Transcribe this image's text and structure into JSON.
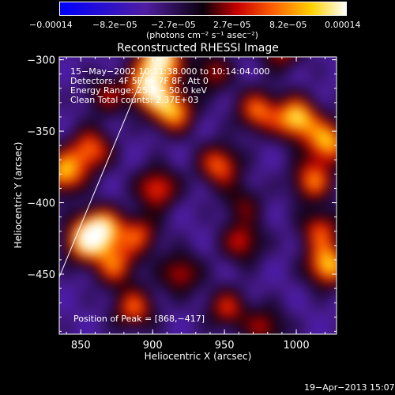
{
  "colorbar": {
    "tick_labels": [
      "−0.00014",
      "−8.2e−05",
      "−2.7e−05",
      "2.7e−05",
      "8.2e−05",
      "0.00014"
    ],
    "unit_label": "(photons cm⁻² s⁻¹ asec⁻²)"
  },
  "chart_data": {
    "type": "heatmap",
    "title": "Reconstructed RHESSI Image",
    "xlabel": "Heliocentric X (arcsec)",
    "ylabel": "Heliocentric Y (arcsec)",
    "xlim": [
      835,
      1028
    ],
    "ylim": [
      -492,
      -298
    ],
    "xticks": [
      850,
      900,
      950,
      1000
    ],
    "yticks": [
      -300,
      -350,
      -400,
      -450
    ],
    "annotations": [
      "15−May−2002 10:11:38.000 to 10:14:04.000",
      "Detectors: 4F 5F 6F 7F 8F, Att 0",
      "Energy Range: 25.0 − 50.0 keV",
      "Clean    Total counts: 2.37E+03"
    ],
    "peak_label": "Position of Peak = [868,−417]",
    "limb_line": [
      [
        835,
        -452
      ],
      [
        895,
        -307
      ]
    ],
    "peaks": [
      {
        "x": 907,
        "y": -305,
        "v": 1.0
      },
      {
        "x": 900,
        "y": -325,
        "v": 0.95
      },
      {
        "x": 915,
        "y": -340,
        "v": 0.75
      },
      {
        "x": 868,
        "y": -417,
        "v": 0.95
      },
      {
        "x": 858,
        "y": -425,
        "v": 0.7
      },
      {
        "x": 845,
        "y": -380,
        "v": 0.75
      },
      {
        "x": 862,
        "y": -365,
        "v": 0.6
      },
      {
        "x": 905,
        "y": -390,
        "v": 0.55
      },
      {
        "x": 893,
        "y": -420,
        "v": 0.5
      },
      {
        "x": 878,
        "y": -440,
        "v": 0.55
      },
      {
        "x": 890,
        "y": -468,
        "v": 0.55
      },
      {
        "x": 920,
        "y": -445,
        "v": 0.45
      },
      {
        "x": 970,
        "y": -340,
        "v": 0.6
      },
      {
        "x": 945,
        "y": -375,
        "v": 0.6
      },
      {
        "x": 995,
        "y": -345,
        "v": 0.85
      },
      {
        "x": 1015,
        "y": -360,
        "v": 0.75
      },
      {
        "x": 1005,
        "y": -385,
        "v": 0.6
      },
      {
        "x": 1015,
        "y": -440,
        "v": 0.8
      },
      {
        "x": 1010,
        "y": -417,
        "v": 0.5
      },
      {
        "x": 960,
        "y": -425,
        "v": 0.45
      },
      {
        "x": 950,
        "y": -468,
        "v": 0.45
      },
      {
        "x": 975,
        "y": -480,
        "v": 0.4
      },
      {
        "x": 985,
        "y": -300,
        "v": 0.45
      },
      {
        "x": 940,
        "y": -315,
        "v": 0.4
      },
      {
        "x": 872,
        "y": -330,
        "v": 0.35
      },
      {
        "x": 960,
        "y": -400,
        "v": 0.3
      }
    ]
  },
  "footer": {
    "timestamp": "19−Apr−2013 15:07"
  }
}
